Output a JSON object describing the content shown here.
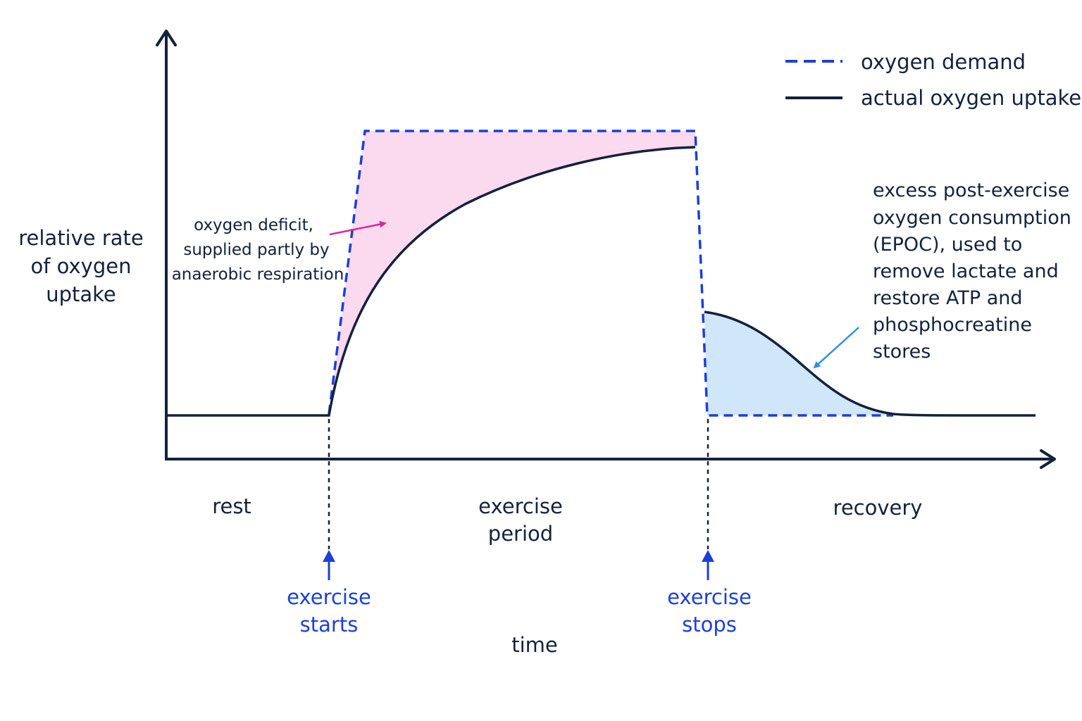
{
  "axes": {
    "y_label_lines": [
      "relative rate",
      "of oxygen",
      "uptake"
    ],
    "x_label": "time"
  },
  "legend": {
    "demand": "oxygen demand",
    "uptake": "actual oxygen uptake"
  },
  "phases": {
    "rest": "rest",
    "exercise_lines": [
      "exercise",
      "period"
    ],
    "recovery": "recovery"
  },
  "markers": {
    "start_lines": [
      "exercise",
      "starts"
    ],
    "stop_lines": [
      "exercise",
      "stops"
    ]
  },
  "annotations": {
    "deficit_lines": [
      "oxygen deficit,",
      "supplied partly by",
      "anaerobic respiration"
    ],
    "epoc_lines": [
      "excess post-exercise",
      "oxygen consumption",
      "(EPOC), used to",
      "remove lactate and",
      "restore ATP and",
      "phosphocreatine",
      "stores"
    ]
  },
  "colors": {
    "axis": "#14213d",
    "uptake_line": "#14213d",
    "demand_line": "#1d3fd6",
    "deficit_fill": "#fbd9ef",
    "epoc_fill": "#cfe6fb",
    "marker_text": "#1d3fd6",
    "deficit_arrow": "#d62a9a",
    "epoc_arrow": "#2f8fe6",
    "text": "#14213d"
  }
}
